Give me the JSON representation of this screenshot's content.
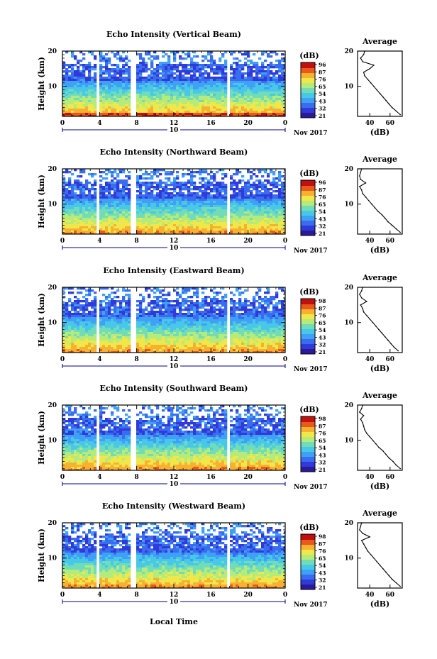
{
  "figure": {
    "x_axis_label": "Local Time",
    "panel_ylabel": "Height (km)",
    "date_label": "Nov 2017",
    "date_day": "10",
    "colorbar_unit": "(dB)",
    "average_title": "Average",
    "average_xlabel": "(dB)",
    "colors": {
      "frame": "#000000",
      "gap": "#ffffff",
      "date_marker": "#00008b",
      "colormap": [
        "#2a1a9a",
        "#2f3ad8",
        "#3a6cf0",
        "#3fa0f6",
        "#47c8e8",
        "#70ddb8",
        "#b4eb7a",
        "#f0e84a",
        "#f8b030",
        "#e85a1a",
        "#c01010"
      ]
    }
  },
  "chart_data": [
    {
      "type": "heatmap",
      "title": "Echo Intensity (Vertical Beam)",
      "xlabel": "Local Time",
      "ylabel": "Height (km)",
      "xlim": [
        0,
        24
      ],
      "ylim": [
        1.5,
        20
      ],
      "x_ticks": [
        "0",
        "4",
        "8",
        "12",
        "16",
        "20",
        "0"
      ],
      "y_ticks": [
        "20",
        "10"
      ],
      "colorbar": {
        "label": "(dB)",
        "ticks": [
          "96",
          "87",
          "76",
          "65",
          "54",
          "43",
          "32",
          "21"
        ],
        "range": [
          21,
          96
        ]
      },
      "data_gaps_local_time": [
        [
          3.7,
          4.1
        ],
        [
          5.7,
          5.8
        ],
        [
          7.3,
          8.1
        ],
        [
          17.7,
          17.9
        ]
      ],
      "profile": {
        "title": "Average",
        "xlabel": "(dB)",
        "x_ticks": [
          "40",
          "60"
        ],
        "y_ticks": [
          "20",
          "10"
        ],
        "xlim": [
          28,
          72
        ],
        "height": [
          2,
          3,
          4,
          5,
          6,
          7,
          8,
          9,
          10,
          11,
          12,
          13,
          14,
          15,
          16,
          17,
          18,
          19,
          20
        ],
        "value": [
          70,
          66,
          62,
          59,
          56,
          53,
          50,
          47,
          44,
          41,
          38,
          35,
          34,
          40,
          44,
          33,
          31,
          34,
          35
        ]
      }
    },
    {
      "type": "heatmap",
      "title": "Echo Intensity (Northward Beam)",
      "xlabel": "Local Time",
      "ylabel": "Height (km)",
      "xlim": [
        0,
        24
      ],
      "ylim": [
        1.5,
        20
      ],
      "x_ticks": [
        "0",
        "4",
        "8",
        "12",
        "16",
        "20",
        "0"
      ],
      "y_ticks": [
        "20",
        "10"
      ],
      "colorbar": {
        "label": "(dB)",
        "ticks": [
          "96",
          "87",
          "76",
          "65",
          "54",
          "43",
          "32",
          "21"
        ],
        "range": [
          21,
          96
        ]
      },
      "data_gaps_local_time": [
        [
          3.7,
          4.1
        ],
        [
          5.7,
          5.8
        ],
        [
          7.3,
          8.1
        ],
        [
          17.7,
          17.9
        ]
      ],
      "profile": {
        "title": "Average",
        "xlabel": "(dB)",
        "x_ticks": [
          "40",
          "60"
        ],
        "y_ticks": [
          "20",
          "10"
        ],
        "xlim": [
          28,
          72
        ],
        "height": [
          2,
          3,
          4,
          5,
          6,
          7,
          8,
          9,
          10,
          11,
          12,
          13,
          14,
          15,
          16,
          17,
          18,
          19,
          20
        ],
        "value": [
          70,
          66,
          62,
          58,
          55,
          52,
          48,
          45,
          42,
          39,
          36,
          33,
          32,
          30,
          36,
          31,
          30,
          31,
          32
        ]
      }
    },
    {
      "type": "heatmap",
      "title": "Echo Intensity (Eastward Beam)",
      "xlabel": "Local Time",
      "ylabel": "Height (km)",
      "xlim": [
        0,
        24
      ],
      "ylim": [
        1.5,
        20
      ],
      "x_ticks": [
        "0",
        "4",
        "8",
        "12",
        "16",
        "20",
        "0"
      ],
      "y_ticks": [
        "20",
        "10"
      ],
      "colorbar": {
        "label": "(dB)",
        "ticks": [
          "98",
          "87",
          "76",
          "65",
          "54",
          "43",
          "32",
          "21"
        ],
        "range": [
          21,
          98
        ]
      },
      "data_gaps_local_time": [
        [
          3.7,
          4.1
        ],
        [
          5.7,
          5.8
        ],
        [
          7.3,
          8.1
        ],
        [
          17.7,
          17.9
        ]
      ],
      "profile": {
        "title": "Average",
        "xlabel": "(dB)",
        "x_ticks": [
          "40",
          "60"
        ],
        "y_ticks": [
          "20",
          "10"
        ],
        "xlim": [
          28,
          72
        ],
        "height": [
          2,
          3,
          4,
          5,
          6,
          7,
          8,
          9,
          10,
          11,
          12,
          13,
          14,
          15,
          16,
          17,
          18,
          19,
          20
        ],
        "value": [
          68,
          64,
          61,
          58,
          55,
          52,
          49,
          46,
          43,
          40,
          37,
          34,
          33,
          31,
          37,
          32,
          30,
          32,
          33
        ]
      }
    },
    {
      "type": "heatmap",
      "title": "Echo Intensity (Southward Beam)",
      "xlabel": "Local Time",
      "ylabel": "Height (km)",
      "xlim": [
        0,
        24
      ],
      "ylim": [
        1.5,
        20
      ],
      "x_ticks": [
        "0",
        "4",
        "8",
        "12",
        "16",
        "20",
        "0"
      ],
      "y_ticks": [
        "20",
        "10"
      ],
      "colorbar": {
        "label": "(dB)",
        "ticks": [
          "98",
          "87",
          "76",
          "65",
          "54",
          "43",
          "32",
          "21"
        ],
        "range": [
          21,
          98
        ]
      },
      "data_gaps_local_time": [
        [
          3.7,
          4.1
        ],
        [
          5.7,
          5.8
        ],
        [
          7.3,
          8.1
        ],
        [
          17.7,
          17.9
        ]
      ],
      "profile": {
        "title": "Average",
        "xlabel": "(dB)",
        "x_ticks": [
          "40",
          "60"
        ],
        "y_ticks": [
          "20",
          "10"
        ],
        "xlim": [
          28,
          72
        ],
        "height": [
          2,
          3,
          4,
          5,
          6,
          7,
          8,
          9,
          10,
          11,
          12,
          13,
          14,
          15,
          16,
          17,
          18,
          19,
          20
        ],
        "value": [
          70,
          66,
          63,
          59,
          56,
          53,
          49,
          46,
          43,
          40,
          37,
          35,
          34,
          33,
          31,
          34,
          30,
          32,
          33
        ]
      }
    },
    {
      "type": "heatmap",
      "title": "Echo Intensity (Westward Beam)",
      "xlabel": "Local Time",
      "ylabel": "Height (km)",
      "xlim": [
        0,
        24
      ],
      "ylim": [
        1.5,
        20
      ],
      "x_ticks": [
        "0",
        "4",
        "8",
        "12",
        "16",
        "20",
        "0"
      ],
      "y_ticks": [
        "20",
        "10"
      ],
      "colorbar": {
        "label": "(dB)",
        "ticks": [
          "98",
          "87",
          "76",
          "65",
          "54",
          "43",
          "32",
          "21"
        ],
        "range": [
          21,
          98
        ]
      },
      "data_gaps_local_time": [
        [
          3.7,
          4.1
        ],
        [
          5.7,
          5.8
        ],
        [
          7.3,
          8.1
        ],
        [
          17.7,
          17.9
        ]
      ],
      "profile": {
        "title": "Average",
        "xlabel": "(dB)",
        "x_ticks": [
          "40",
          "60"
        ],
        "y_ticks": [
          "20",
          "10"
        ],
        "xlim": [
          28,
          72
        ],
        "height": [
          2,
          3,
          4,
          5,
          6,
          7,
          8,
          9,
          10,
          11,
          12,
          13,
          14,
          15,
          16,
          17,
          18,
          19,
          20
        ],
        "value": [
          70,
          66,
          62,
          59,
          56,
          53,
          50,
          47,
          44,
          41,
          38,
          36,
          34,
          32,
          40,
          33,
          30,
          31,
          32
        ]
      }
    }
  ]
}
